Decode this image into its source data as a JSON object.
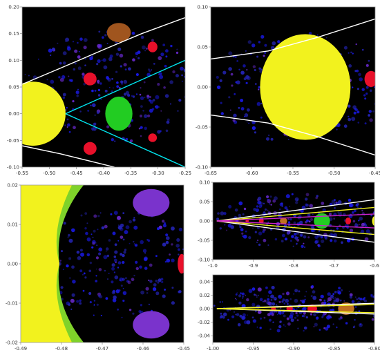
{
  "chart_data": [
    {
      "type": "heatmap",
      "title": "",
      "xlim": [
        -0.55,
        -0.25
      ],
      "ylim": [
        -0.1,
        0.2
      ],
      "xticks": [
        "-0.55",
        "-0.50",
        "-0.45",
        "-0.40",
        "-0.35",
        "-0.30",
        "-0.25"
      ],
      "xtick_values": [
        -0.55,
        -0.5,
        -0.45,
        -0.4,
        -0.35,
        -0.3,
        -0.25
      ],
      "yticks": [
        "-0.10",
        "-0.05",
        "0.00",
        "0.05",
        "0.10",
        "0.15",
        "0.20"
      ],
      "ytick_values": [
        -0.1,
        -0.05,
        0.0,
        0.05,
        0.1,
        0.15,
        0.2
      ],
      "background_color": "#000000",
      "overlay_curves": [
        {
          "color": "#ffffff",
          "points": [
            [
              -0.55,
              0.055
            ],
            [
              -0.48,
              0.085
            ],
            [
              -0.4,
              0.12
            ],
            [
              -0.33,
              0.15
            ],
            [
              -0.25,
              0.18
            ]
          ]
        },
        {
          "color": "#ffffff",
          "points": [
            [
              -0.55,
              -0.06
            ],
            [
              -0.48,
              -0.075
            ],
            [
              -0.42,
              -0.09
            ],
            [
              -0.38,
              -0.1
            ]
          ]
        },
        {
          "color": "#00e5ee",
          "points": [
            [
              -0.47,
              0.0
            ],
            [
              -0.25,
              0.1
            ]
          ]
        },
        {
          "color": "#00e5ee",
          "points": [
            [
              -0.47,
              0.0
            ],
            [
              -0.25,
              -0.1
            ]
          ]
        }
      ],
      "regions": [
        {
          "name": "yellow cardioid",
          "color": "#f2f21e",
          "center": [
            -0.53,
            0.0
          ],
          "radius": [
            0.06,
            0.06
          ]
        },
        {
          "name": "green bulb",
          "color": "#22cc22",
          "center": [
            -0.372,
            0.0
          ],
          "radius": [
            0.025,
            0.032
          ]
        },
        {
          "name": "brown bulb",
          "color": "#a0551e",
          "center": [
            -0.372,
            0.152
          ],
          "radius": [
            0.022,
            0.018
          ]
        },
        {
          "name": "red bulb",
          "color": "#e8102a",
          "center": [
            -0.425,
            0.065
          ],
          "radius": [
            0.012,
            0.012
          ]
        },
        {
          "name": "red bulb",
          "color": "#e8102a",
          "center": [
            -0.425,
            -0.065
          ],
          "radius": [
            0.012,
            0.012
          ]
        },
        {
          "name": "red bulb",
          "color": "#e8102a",
          "center": [
            -0.31,
            0.125
          ],
          "radius": [
            0.009,
            0.01
          ]
        },
        {
          "name": "red bulb",
          "color": "#e8102a",
          "center": [
            -0.31,
            -0.045
          ],
          "radius": [
            0.008,
            0.008
          ]
        }
      ]
    },
    {
      "type": "heatmap",
      "title": "",
      "xlim": [
        -0.65,
        -0.45
      ],
      "ylim": [
        -0.1,
        0.1
      ],
      "xticks": [
        "-0.65",
        "-0.60",
        "-0.55",
        "-0.50",
        "-0.45"
      ],
      "xtick_values": [
        -0.65,
        -0.6,
        -0.55,
        -0.5,
        -0.45
      ],
      "yticks": [
        "-0.10",
        "-0.05",
        "0.00",
        "0.05",
        "0.10"
      ],
      "ytick_values": [
        -0.1,
        -0.05,
        0.0,
        0.05,
        0.1
      ],
      "background_color": "#000000",
      "overlay_curves": [
        {
          "color": "#ffffff",
          "points": [
            [
              -0.65,
              0.035
            ],
            [
              -0.58,
              0.045
            ],
            [
              -0.52,
              0.062
            ],
            [
              -0.45,
              0.085
            ]
          ]
        },
        {
          "color": "#ffffff",
          "points": [
            [
              -0.65,
              -0.035
            ],
            [
              -0.58,
              -0.045
            ],
            [
              -0.52,
              -0.062
            ],
            [
              -0.45,
              -0.085
            ]
          ]
        }
      ],
      "regions": [
        {
          "name": "yellow cardioid",
          "color": "#f2f21e",
          "center": [
            -0.535,
            0.0
          ],
          "radius": [
            0.055,
            0.066
          ]
        },
        {
          "name": "red bulb",
          "color": "#e8102a",
          "center": [
            -0.455,
            0.01
          ],
          "radius": [
            0.008,
            0.01
          ]
        }
      ]
    },
    {
      "type": "heatmap",
      "title": "",
      "xlim": [
        -0.49,
        -0.45
      ],
      "ylim": [
        -0.02,
        0.02
      ],
      "xticks": [
        "-0.49",
        "-0.48",
        "-0.47",
        "-0.46",
        "-0.45"
      ],
      "xtick_values": [
        -0.49,
        -0.48,
        -0.47,
        -0.46,
        -0.45
      ],
      "yticks": [
        "-0.02",
        "-0.01",
        "0.00",
        "0.01",
        "0.02"
      ],
      "ytick_values": [
        -0.02,
        -0.01,
        0.0,
        0.01,
        0.02
      ],
      "background_color": "#000000",
      "regions": [
        {
          "name": "yellow cardioid",
          "color": "#f2f21e",
          "cusp": [
            -0.4805,
            0.0
          ]
        },
        {
          "name": "purple bulb",
          "color": "#7a33cc",
          "center": [
            -0.458,
            0.0155
          ],
          "radius": [
            0.0045,
            0.0035
          ]
        },
        {
          "name": "purple bulb",
          "color": "#7a33cc",
          "center": [
            -0.458,
            -0.0155
          ],
          "radius": [
            0.0045,
            0.0035
          ]
        },
        {
          "name": "red bulb",
          "color": "#e8102a",
          "center": [
            -0.4505,
            0.0
          ],
          "radius": [
            0.001,
            0.0025
          ]
        }
      ]
    },
    {
      "type": "heatmap",
      "title": "",
      "xlim": [
        -1.0,
        -0.6
      ],
      "ylim": [
        -0.1,
        0.1
      ],
      "xticks": [
        "-1.0",
        "-0.9",
        "-0.8",
        "-0.7",
        "-0.6"
      ],
      "xtick_values": [
        -1.0,
        -0.9,
        -0.8,
        -0.7,
        -0.6
      ],
      "yticks": [
        "-0.10",
        "-0.05",
        "0.00",
        "0.05",
        "0.10"
      ],
      "ytick_values": [
        -0.1,
        -0.05,
        0.0,
        0.05,
        0.1
      ],
      "background_color": "#000000",
      "overlay_curves": [
        {
          "color": "#ffffff",
          "points": [
            [
              -0.99,
              0.0
            ],
            [
              -0.6,
              0.055
            ]
          ]
        },
        {
          "color": "#ffffff",
          "points": [
            [
              -0.99,
              0.0
            ],
            [
              -0.6,
              -0.055
            ]
          ]
        },
        {
          "color": "#f2f21e",
          "points": [
            [
              -0.99,
              0.0
            ],
            [
              -0.6,
              0.035
            ]
          ]
        },
        {
          "color": "#f2f21e",
          "points": [
            [
              -0.99,
              0.0
            ],
            [
              -0.6,
              -0.035
            ]
          ]
        },
        {
          "color": "#cc22cc",
          "points": [
            [
              -0.99,
              0.0
            ],
            [
              -0.6,
              0.018
            ]
          ]
        },
        {
          "color": "#cc22cc",
          "points": [
            [
              -0.99,
              0.0
            ],
            [
              -0.6,
              -0.018
            ]
          ]
        }
      ],
      "regions": [
        {
          "name": "green bulb",
          "color": "#22cc22",
          "center": [
            -0.73,
            0.0
          ],
          "radius": [
            0.02,
            0.02
          ]
        },
        {
          "name": "orange bulb",
          "color": "#c07020",
          "center": [
            -0.825,
            0.0
          ],
          "radius": [
            0.009,
            0.009
          ]
        },
        {
          "name": "red bulb",
          "color": "#e8102a",
          "center": [
            -0.88,
            0.0
          ],
          "radius": [
            0.006,
            0.006
          ]
        },
        {
          "name": "red bulb",
          "color": "#e8102a",
          "center": [
            -0.915,
            0.0
          ],
          "radius": [
            0.004,
            0.004
          ]
        },
        {
          "name": "red bulb",
          "color": "#e8102a",
          "center": [
            -0.665,
            0.0
          ],
          "radius": [
            0.007,
            0.009
          ]
        },
        {
          "name": "yellow bulb",
          "color": "#f2f21e",
          "center": [
            -0.6,
            0.0
          ],
          "radius": [
            0.006,
            0.012
          ]
        }
      ]
    },
    {
      "type": "heatmap",
      "title": "",
      "xlim": [
        -1.0,
        -0.8
      ],
      "ylim": [
        -0.05,
        0.05
      ],
      "xticks": [
        "-1.00",
        "-0.95",
        "-0.90",
        "-0.85",
        "-0.80"
      ],
      "xtick_values": [
        -1.0,
        -0.95,
        -0.9,
        -0.85,
        -0.8
      ],
      "yticks": [
        "-0.04",
        "-0.02",
        "0.00",
        "0.02",
        "0.04"
      ],
      "ytick_values": [
        -0.04,
        -0.02,
        0.0,
        0.02,
        0.04
      ],
      "background_color": "#000000",
      "overlay_curves": [
        {
          "color": "#ffffff",
          "points": [
            [
              -0.995,
              0.0
            ],
            [
              -0.8,
              0.008
            ]
          ]
        },
        {
          "color": "#ffffff",
          "points": [
            [
              -0.995,
              0.0
            ],
            [
              -0.8,
              -0.008
            ]
          ]
        },
        {
          "color": "#f2f21e",
          "points": [
            [
              -0.995,
              0.0
            ],
            [
              -0.8,
              0.006
            ]
          ]
        },
        {
          "color": "#f2f21e",
          "points": [
            [
              -0.995,
              0.0
            ],
            [
              -0.8,
              -0.006
            ]
          ]
        }
      ],
      "regions": [
        {
          "name": "orange bulb",
          "color": "#c07020",
          "center": [
            -0.835,
            0.0
          ],
          "radius": [
            0.01,
            0.009
          ]
        },
        {
          "name": "red bulb",
          "color": "#e8102a",
          "center": [
            -0.877,
            0.0
          ],
          "radius": [
            0.006,
            0.006
          ]
        },
        {
          "name": "red bulb",
          "color": "#e8102a",
          "center": [
            -0.905,
            0.0
          ],
          "radius": [
            0.004,
            0.004
          ]
        },
        {
          "name": "red bulb",
          "color": "#e8102a",
          "center": [
            -0.925,
            0.0
          ],
          "radius": [
            0.003,
            0.003
          ]
        }
      ]
    }
  ]
}
